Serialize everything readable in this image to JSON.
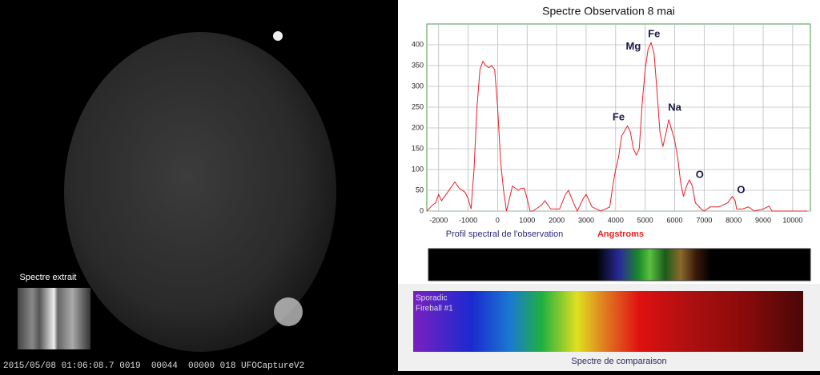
{
  "chart_data": {
    "type": "line",
    "title": "Spectre Observation 8 mai",
    "x_label": "Angstroms",
    "caption": "Profil spectral de l'observation",
    "x": [
      -2400,
      -2200,
      -2100,
      -2000,
      -1900,
      -1800,
      -1600,
      -1450,
      -1300,
      -1100,
      -1000,
      -900,
      -800,
      -700,
      -600,
      -500,
      -400,
      -300,
      -200,
      -100,
      0,
      100,
      200,
      300,
      400,
      500,
      600,
      700,
      800,
      900,
      1000,
      1100,
      1200,
      1500,
      1600,
      1800,
      2100,
      2300,
      2400,
      2600,
      2700,
      2900,
      3000,
      3200,
      3500,
      3800,
      3900,
      4000,
      4100,
      4200,
      4400,
      4500,
      4600,
      4700,
      4800,
      4900,
      5000,
      5100,
      5200,
      5300,
      5400,
      5500,
      5600,
      5700,
      5800,
      5900,
      6000,
      6100,
      6200,
      6300,
      6400,
      6500,
      6600,
      6700,
      6900,
      7000,
      7200,
      7500,
      7800,
      7950,
      8050,
      8100,
      8300,
      8500,
      8700,
      9000,
      9200,
      9300,
      10500
    ],
    "series": [
      {
        "name": "Profil",
        "color": "#e8202a",
        "values": [
          0,
          15,
          20,
          40,
          25,
          35,
          55,
          70,
          55,
          45,
          30,
          5,
          100,
          250,
          340,
          360,
          350,
          345,
          350,
          340,
          250,
          120,
          50,
          0,
          30,
          60,
          55,
          50,
          55,
          55,
          30,
          0,
          0,
          15,
          25,
          5,
          5,
          40,
          50,
          15,
          0,
          30,
          40,
          10,
          0,
          10,
          60,
          100,
          130,
          180,
          205,
          190,
          150,
          135,
          150,
          260,
          340,
          390,
          405,
          380,
          290,
          190,
          155,
          185,
          220,
          195,
          170,
          130,
          70,
          35,
          60,
          75,
          60,
          20,
          5,
          0,
          10,
          10,
          20,
          35,
          25,
          5,
          5,
          10,
          0,
          5,
          12,
          0,
          0
        ]
      }
    ],
    "xlim": [
      -2400,
      10600
    ],
    "ylim": [
      0,
      450
    ],
    "xticks": [
      -2000,
      -1000,
      0,
      1000,
      2000,
      3000,
      4000,
      5000,
      6000,
      7000,
      8000,
      9000,
      10000
    ],
    "yticks": [
      0,
      50,
      100,
      150,
      200,
      250,
      300,
      350,
      400
    ],
    "grid": true,
    "annotations": [
      {
        "text": "Fe",
        "x": 4100,
        "y": 225
      },
      {
        "text": "Mg",
        "x": 4600,
        "y": 395
      },
      {
        "text": "Fe",
        "x": 5300,
        "y": 425
      },
      {
        "text": "Na",
        "x": 6000,
        "y": 248
      },
      {
        "text": "O",
        "x": 6850,
        "y": 86
      },
      {
        "text": "O",
        "x": 8250,
        "y": 50
      }
    ]
  },
  "video": {
    "label": "Spectre extrait",
    "timestamp": "2015/05/08 01:06:08.7 0019  00044  00000 018 UFOCaptureV2"
  },
  "comparison": {
    "name": "Sporadic",
    "subname": "Fireball #1",
    "caption": "Spectre de comparaison"
  }
}
